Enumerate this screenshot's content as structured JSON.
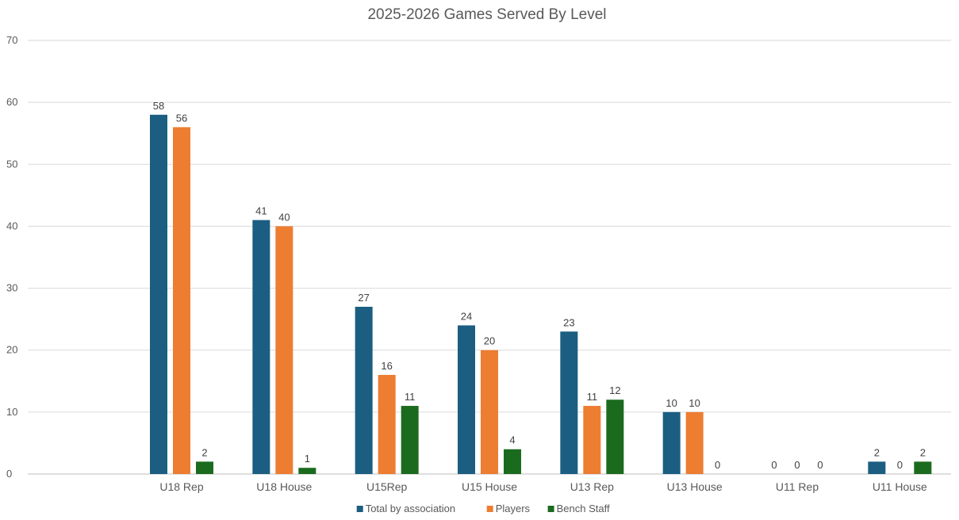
{
  "chart_data": {
    "type": "bar",
    "title": "2025-2026 Games Served By Level",
    "xlabel": "",
    "ylabel": "",
    "ylim": [
      0,
      70
    ],
    "yticks": [
      0,
      10,
      20,
      30,
      40,
      50,
      60,
      70
    ],
    "grid": true,
    "legend_position": "bottom",
    "categories": [
      "",
      "U18 Rep",
      "U18 House",
      "U15Rep",
      "U15 House",
      "U13 Rep",
      "U13 House",
      "U11 Rep",
      "U11 House"
    ],
    "series": [
      {
        "name": "Total by association",
        "color": "#1b5e82",
        "values": [
          null,
          58,
          41,
          27,
          24,
          23,
          10,
          0,
          2
        ]
      },
      {
        "name": "Players",
        "color": "#ed7d31",
        "values": [
          null,
          56,
          40,
          16,
          20,
          11,
          10,
          0,
          0
        ]
      },
      {
        "name": "Bench Staff",
        "color": "#1b6b1f",
        "values": [
          null,
          2,
          1,
          11,
          4,
          12,
          0,
          0,
          2
        ]
      }
    ]
  }
}
